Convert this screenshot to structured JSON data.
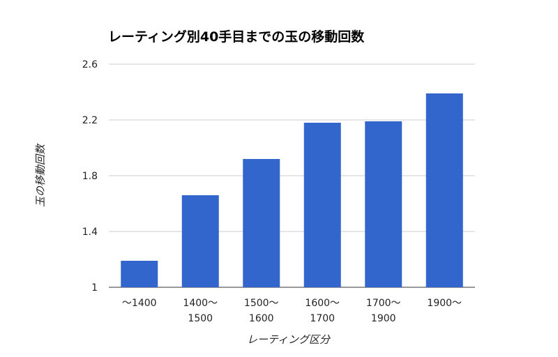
{
  "chart_data": {
    "type": "bar",
    "title": "レーティング別40手目までの玉の移動回数",
    "xlabel": "レーティング区分",
    "ylabel": "玉の移動回数",
    "categories": [
      [
        "〜1400"
      ],
      [
        "1400〜",
        "1500"
      ],
      [
        "1500〜",
        "1600"
      ],
      [
        "1600〜",
        "1700"
      ],
      [
        "1700〜",
        "1900"
      ],
      [
        "1900〜"
      ]
    ],
    "values": [
      1.19,
      1.66,
      1.92,
      2.18,
      2.19,
      2.39
    ],
    "ylim": [
      1,
      2.6
    ],
    "yticks": [
      1,
      1.4,
      1.8,
      2.2,
      2.6
    ],
    "ytick_labels": [
      "1",
      "1.4",
      "1.8",
      "2.2",
      "2.6"
    ],
    "grid": true,
    "legend": "none",
    "bar_color": "#3366cc"
  }
}
